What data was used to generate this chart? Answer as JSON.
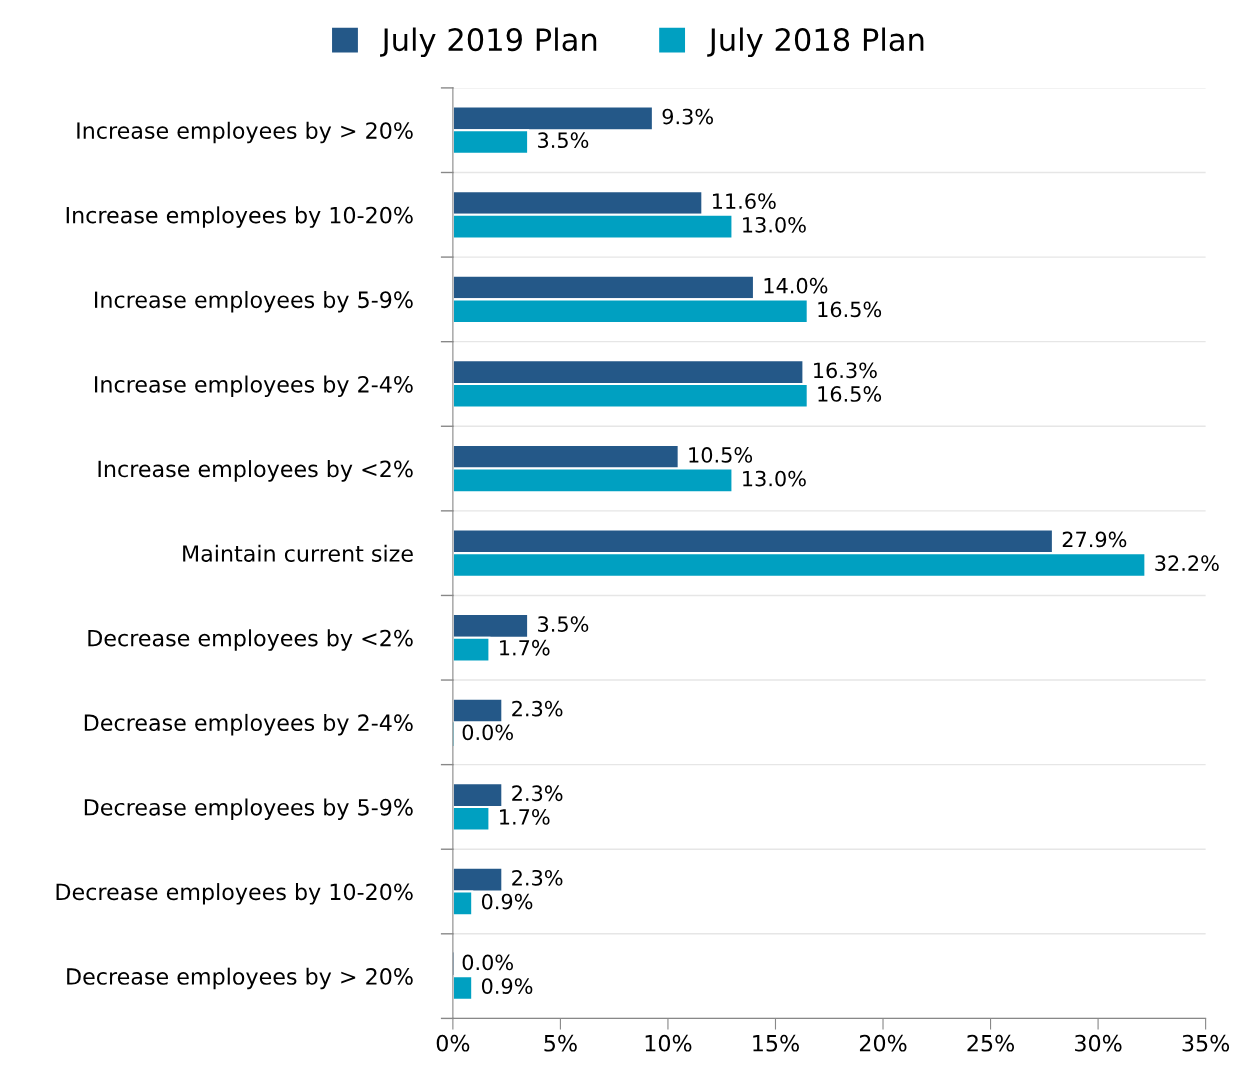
{
  "chart_data": {
    "type": "bar",
    "orientation": "horizontal",
    "categories": [
      "Increase employees by > 20%",
      "Increase employees by 10-20%",
      "Increase employees by 5-9%",
      "Increase employees by 2-4%",
      "Increase employees by <2%",
      "Maintain current size",
      "Decrease employees by <2%",
      "Decrease employees by 2-4%",
      "Decrease employees by 5-9%",
      "Decrease employees by 10-20%",
      "Decrease employees by > 20%"
    ],
    "series": [
      {
        "name": "July 2019 Plan",
        "color": "#245888",
        "values": [
          9.3,
          11.6,
          14.0,
          16.3,
          10.5,
          27.9,
          3.5,
          2.3,
          2.3,
          2.3,
          0.0
        ],
        "value_labels": [
          "9.3%",
          "11.6%",
          "14.0%",
          "16.3%",
          "10.5%",
          "27.9%",
          "3.5%",
          "2.3%",
          "2.3%",
          "2.3%",
          "0.0%"
        ]
      },
      {
        "name": "July 2018 Plan",
        "color": "#00a0c1",
        "values": [
          3.5,
          13.0,
          16.5,
          16.5,
          13.0,
          32.2,
          1.7,
          0.0,
          1.7,
          0.9,
          0.9
        ],
        "value_labels": [
          "3.5%",
          "13.0%",
          "16.5%",
          "16.5%",
          "13.0%",
          "32.2%",
          "1.7%",
          "0.0%",
          "1.7%",
          "0.9%",
          "0.9%"
        ]
      }
    ],
    "xlim": [
      0,
      35
    ],
    "xticks": [
      {
        "value": 0,
        "label": "0%"
      },
      {
        "value": 5,
        "label": "5%"
      },
      {
        "value": 10,
        "label": "10%"
      },
      {
        "value": 15,
        "label": "15%"
      },
      {
        "value": 20,
        "label": "20%"
      },
      {
        "value": 25,
        "label": "25%"
      },
      {
        "value": 30,
        "label": "30%"
      },
      {
        "value": 35,
        "label": "35%"
      }
    ],
    "grid": "y",
    "legend": "top"
  }
}
